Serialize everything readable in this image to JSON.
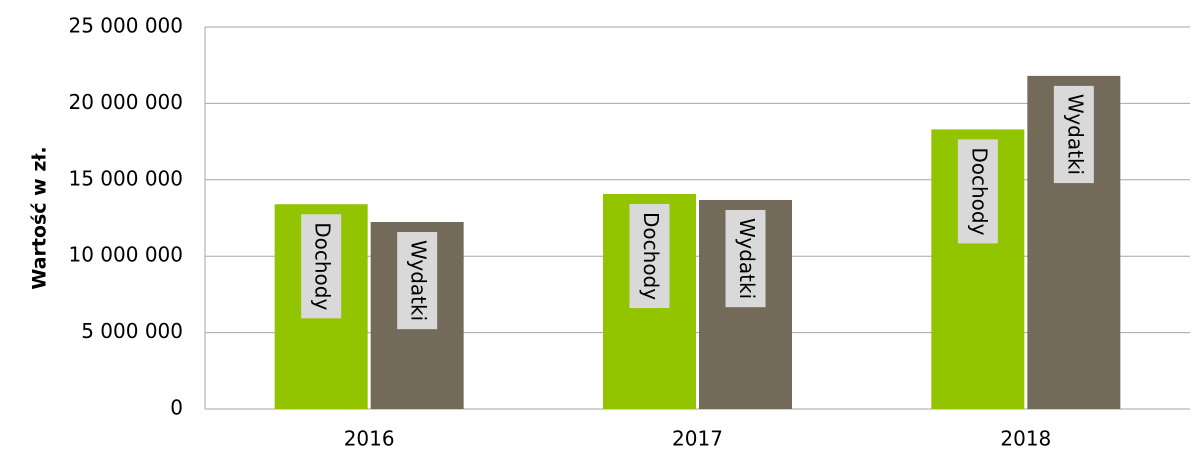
{
  "chart_data": {
    "type": "bar",
    "y_label": "Wartość w zł.",
    "categories": [
      "2016",
      "2017",
      "2018"
    ],
    "series": [
      {
        "name": "Dochody",
        "color": "#92c400",
        "values": [
          13400000,
          14070000,
          18300000
        ]
      },
      {
        "name": "Wydatki",
        "color": "#736a5a",
        "values": [
          12240000,
          13680000,
          21800000
        ]
      }
    ],
    "ylim": [
      0,
      25000000
    ],
    "yticks": [
      0,
      {
        "value": 5000000,
        "label": "5 000 000"
      },
      {
        "value": 10000000,
        "label": "10 000 000"
      },
      {
        "value": 15000000,
        "label": "15 000 000"
      },
      {
        "value": 20000000,
        "label": "20 000 000"
      },
      {
        "value": 25000000,
        "label": "25 000 000"
      }
    ],
    "grid": true
  }
}
